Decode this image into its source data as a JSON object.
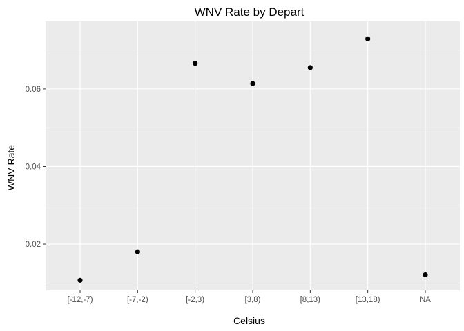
{
  "chart_data": {
    "type": "scatter",
    "title": "WNV Rate by Depart",
    "xlabel": "Celsius",
    "ylabel": "WNV Rate",
    "categories": [
      "[-12,-7)",
      "[-7,-2)",
      "[-2,3)",
      "[3,8)",
      "[8,13)",
      "[13,18)",
      "NA"
    ],
    "values": [
      0.0107,
      0.018,
      0.0666,
      0.0614,
      0.0655,
      0.0729,
      0.0121
    ],
    "ylim": [
      0.0081,
      0.0774
    ],
    "yticks": [
      0.02,
      0.04,
      0.06
    ],
    "ytick_labels": [
      "0.02",
      "0.04",
      "0.06"
    ],
    "grid": true,
    "colors": {
      "panel_background": "#ebebeb",
      "grid_major": "#ffffff",
      "point": "#000000",
      "tick_text": "#4d4d4d",
      "tick_mark": "#333333"
    }
  }
}
